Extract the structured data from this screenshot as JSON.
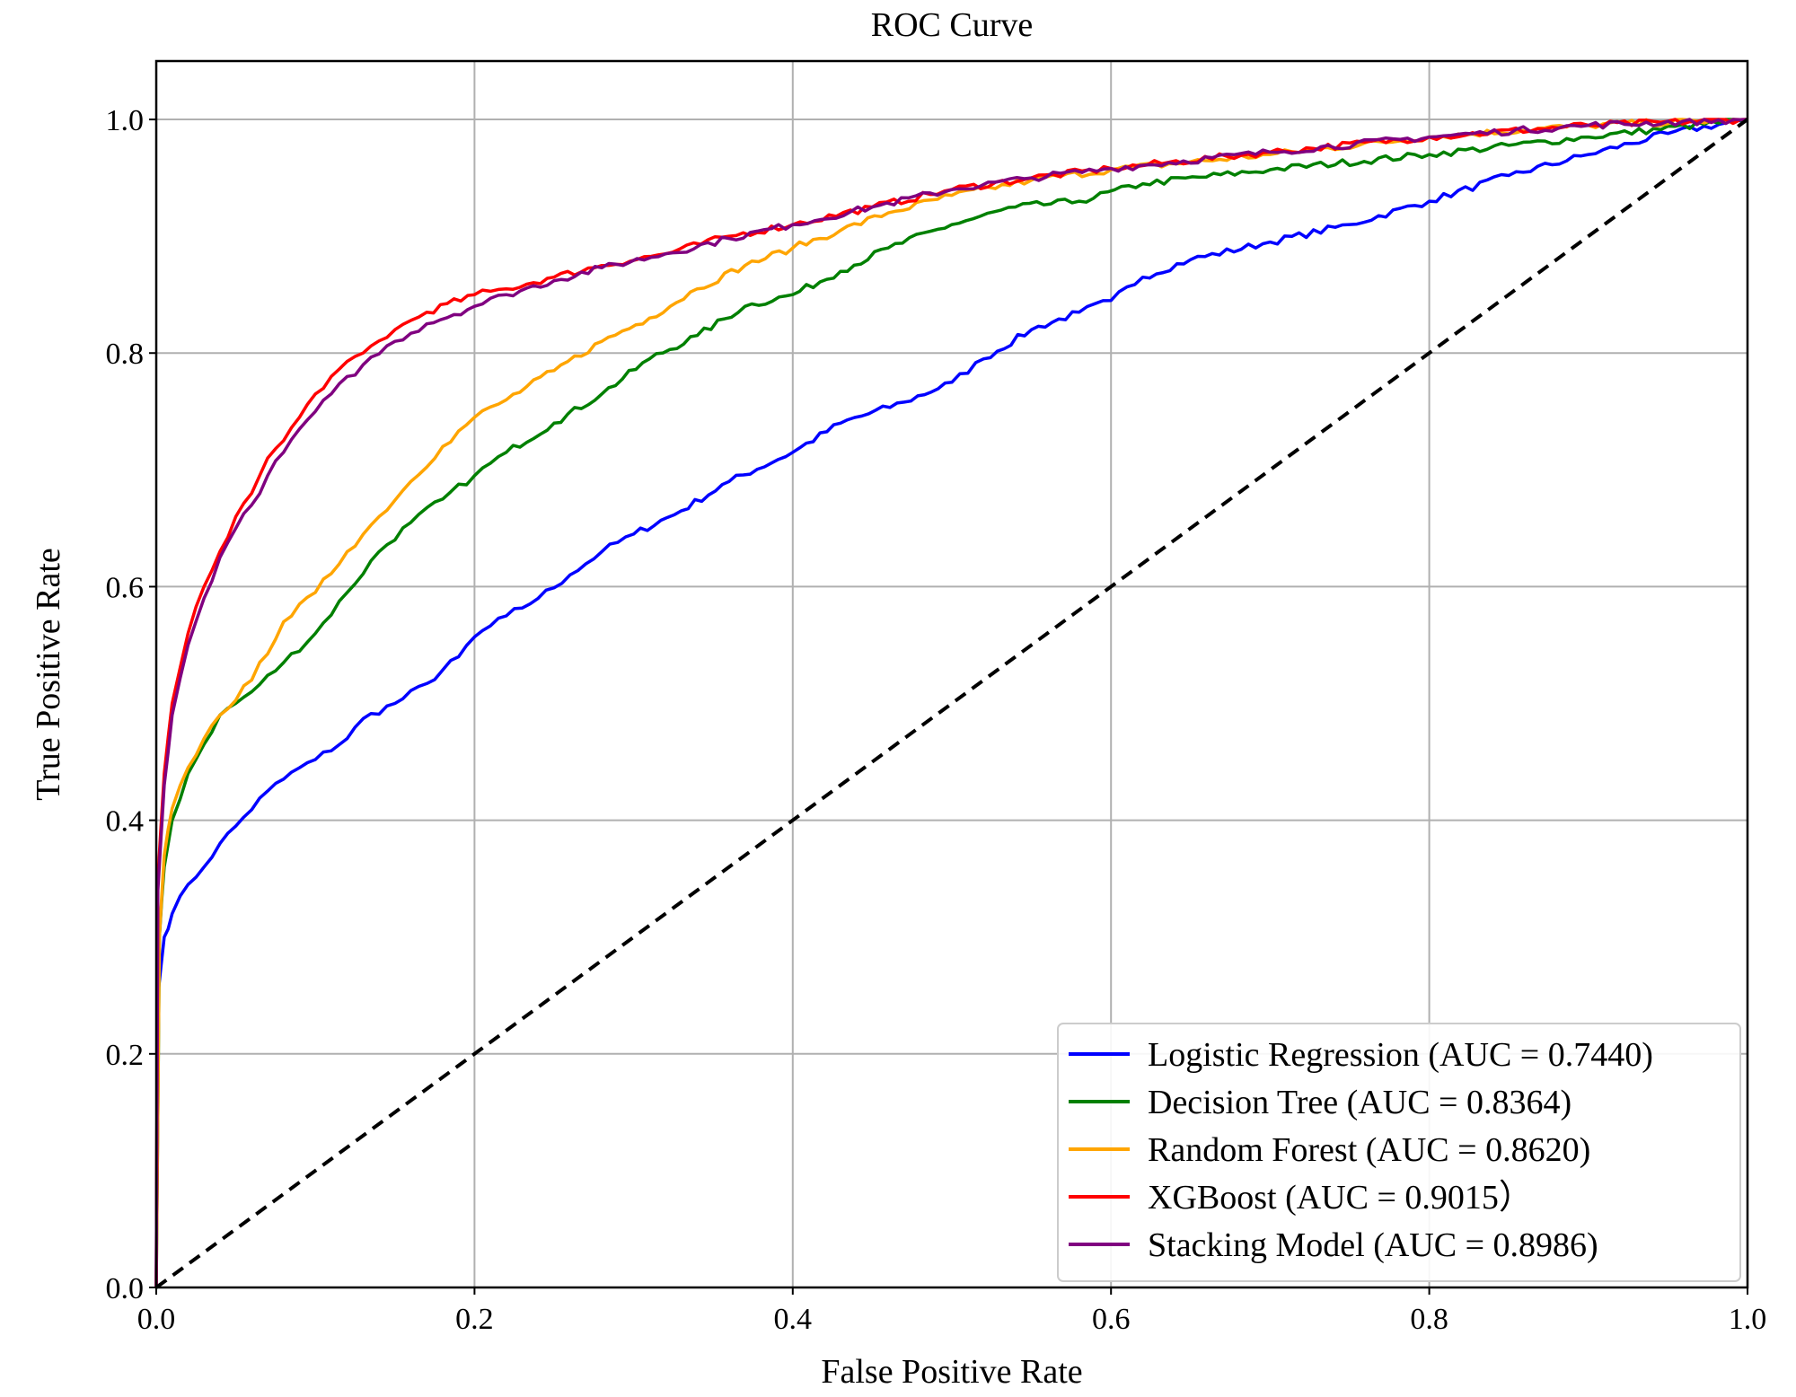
{
  "chart_data": {
    "type": "line",
    "title": "ROC Curve",
    "xlabel": "False Positive Rate",
    "ylabel": "True Positive Rate",
    "xlim": [
      0,
      1
    ],
    "ylim": [
      0,
      1.05
    ],
    "xticks": [
      "0.0",
      "0.2",
      "0.4",
      "0.6",
      "0.8",
      "1.0"
    ],
    "yticks": [
      "0.0",
      "0.2",
      "0.4",
      "0.6",
      "0.8",
      "1.0"
    ],
    "grid": true,
    "legend_position": "lower-right",
    "series": [
      {
        "name": "Logistic Regression (AUC = 0.7440)",
        "color": "#0000ff",
        "points": [
          [
            0,
            0
          ],
          [
            0.001,
            0.25
          ],
          [
            0.005,
            0.3
          ],
          [
            0.01,
            0.32
          ],
          [
            0.02,
            0.345
          ],
          [
            0.03,
            0.36
          ],
          [
            0.04,
            0.38
          ],
          [
            0.05,
            0.395
          ],
          [
            0.07,
            0.425
          ],
          [
            0.09,
            0.445
          ],
          [
            0.1,
            0.452
          ],
          [
            0.12,
            0.47
          ],
          [
            0.13,
            0.487
          ],
          [
            0.15,
            0.5
          ],
          [
            0.17,
            0.517
          ],
          [
            0.19,
            0.54
          ],
          [
            0.2,
            0.557
          ],
          [
            0.22,
            0.575
          ],
          [
            0.24,
            0.59
          ],
          [
            0.26,
            0.61
          ],
          [
            0.28,
            0.63
          ],
          [
            0.3,
            0.645
          ],
          [
            0.33,
            0.665
          ],
          [
            0.36,
            0.69
          ],
          [
            0.4,
            0.715
          ],
          [
            0.43,
            0.74
          ],
          [
            0.47,
            0.758
          ],
          [
            0.5,
            0.775
          ],
          [
            0.52,
            0.795
          ],
          [
            0.55,
            0.82
          ],
          [
            0.58,
            0.835
          ],
          [
            0.6,
            0.845
          ],
          [
            0.62,
            0.865
          ],
          [
            0.65,
            0.88
          ],
          [
            0.7,
            0.895
          ],
          [
            0.75,
            0.91
          ],
          [
            0.8,
            0.93
          ],
          [
            0.85,
            0.952
          ],
          [
            0.9,
            0.97
          ],
          [
            0.95,
            0.988
          ],
          [
            1,
            1
          ]
        ]
      },
      {
        "name": "Decision Tree (AUC = 0.8364)",
        "color": "#008000",
        "points": [
          [
            0,
            0
          ],
          [
            0.002,
            0.3
          ],
          [
            0.005,
            0.36
          ],
          [
            0.01,
            0.4
          ],
          [
            0.02,
            0.44
          ],
          [
            0.03,
            0.465
          ],
          [
            0.04,
            0.49
          ],
          [
            0.06,
            0.51
          ],
          [
            0.08,
            0.535
          ],
          [
            0.1,
            0.56
          ],
          [
            0.12,
            0.595
          ],
          [
            0.14,
            0.63
          ],
          [
            0.16,
            0.655
          ],
          [
            0.18,
            0.675
          ],
          [
            0.2,
            0.695
          ],
          [
            0.22,
            0.715
          ],
          [
            0.25,
            0.74
          ],
          [
            0.28,
            0.765
          ],
          [
            0.31,
            0.795
          ],
          [
            0.34,
            0.815
          ],
          [
            0.37,
            0.84
          ],
          [
            0.4,
            0.85
          ],
          [
            0.43,
            0.87
          ],
          [
            0.46,
            0.89
          ],
          [
            0.5,
            0.91
          ],
          [
            0.54,
            0.925
          ],
          [
            0.58,
            0.93
          ],
          [
            0.62,
            0.945
          ],
          [
            0.7,
            0.957
          ],
          [
            0.8,
            0.97
          ],
          [
            0.9,
            0.985
          ],
          [
            1,
            1
          ]
        ]
      },
      {
        "name": "Random Forest (AUC = 0.8620)",
        "color": "#ffa500",
        "points": [
          [
            0,
            0
          ],
          [
            0.002,
            0.3
          ],
          [
            0.005,
            0.37
          ],
          [
            0.01,
            0.41
          ],
          [
            0.02,
            0.445
          ],
          [
            0.03,
            0.47
          ],
          [
            0.04,
            0.49
          ],
          [
            0.06,
            0.52
          ],
          [
            0.08,
            0.57
          ],
          [
            0.1,
            0.595
          ],
          [
            0.12,
            0.63
          ],
          [
            0.14,
            0.66
          ],
          [
            0.16,
            0.69
          ],
          [
            0.18,
            0.72
          ],
          [
            0.2,
            0.745
          ],
          [
            0.22,
            0.76
          ],
          [
            0.25,
            0.785
          ],
          [
            0.28,
            0.81
          ],
          [
            0.31,
            0.83
          ],
          [
            0.34,
            0.855
          ],
          [
            0.37,
            0.875
          ],
          [
            0.4,
            0.89
          ],
          [
            0.43,
            0.905
          ],
          [
            0.46,
            0.92
          ],
          [
            0.5,
            0.935
          ],
          [
            0.55,
            0.948
          ],
          [
            0.6,
            0.957
          ],
          [
            0.7,
            0.97
          ],
          [
            0.8,
            0.985
          ],
          [
            0.9,
            0.995
          ],
          [
            1,
            1
          ]
        ]
      },
      {
        "name": "XGBoost (AUC = 0.9015）",
        "color": "#ff0000",
        "points": [
          [
            0,
            0
          ],
          [
            0.001,
            0.35
          ],
          [
            0.005,
            0.44
          ],
          [
            0.01,
            0.5
          ],
          [
            0.02,
            0.56
          ],
          [
            0.03,
            0.6
          ],
          [
            0.04,
            0.63
          ],
          [
            0.05,
            0.66
          ],
          [
            0.06,
            0.68
          ],
          [
            0.07,
            0.71
          ],
          [
            0.08,
            0.725
          ],
          [
            0.09,
            0.745
          ],
          [
            0.1,
            0.765
          ],
          [
            0.11,
            0.78
          ],
          [
            0.13,
            0.8
          ],
          [
            0.15,
            0.82
          ],
          [
            0.17,
            0.835
          ],
          [
            0.2,
            0.85
          ],
          [
            0.22,
            0.855
          ],
          [
            0.25,
            0.865
          ],
          [
            0.28,
            0.875
          ],
          [
            0.32,
            0.885
          ],
          [
            0.36,
            0.9
          ],
          [
            0.4,
            0.91
          ],
          [
            0.45,
            0.925
          ],
          [
            0.5,
            0.94
          ],
          [
            0.55,
            0.95
          ],
          [
            0.6,
            0.958
          ],
          [
            0.7,
            0.972
          ],
          [
            0.8,
            0.985
          ],
          [
            0.9,
            0.995
          ],
          [
            1,
            1
          ]
        ]
      },
      {
        "name": "Stacking Model (AUC = 0.8986)",
        "color": "#800080",
        "points": [
          [
            0,
            0
          ],
          [
            0.001,
            0.34
          ],
          [
            0.005,
            0.43
          ],
          [
            0.01,
            0.49
          ],
          [
            0.02,
            0.55
          ],
          [
            0.03,
            0.59
          ],
          [
            0.04,
            0.625
          ],
          [
            0.05,
            0.65
          ],
          [
            0.06,
            0.67
          ],
          [
            0.07,
            0.695
          ],
          [
            0.08,
            0.715
          ],
          [
            0.09,
            0.735
          ],
          [
            0.1,
            0.75
          ],
          [
            0.11,
            0.765
          ],
          [
            0.13,
            0.79
          ],
          [
            0.15,
            0.81
          ],
          [
            0.17,
            0.825
          ],
          [
            0.2,
            0.84
          ],
          [
            0.22,
            0.85
          ],
          [
            0.25,
            0.862
          ],
          [
            0.28,
            0.873
          ],
          [
            0.32,
            0.885
          ],
          [
            0.36,
            0.898
          ],
          [
            0.4,
            0.91
          ],
          [
            0.45,
            0.925
          ],
          [
            0.5,
            0.94
          ],
          [
            0.55,
            0.95
          ],
          [
            0.6,
            0.958
          ],
          [
            0.7,
            0.972
          ],
          [
            0.8,
            0.985
          ],
          [
            0.9,
            0.995
          ],
          [
            1,
            1
          ]
        ]
      },
      {
        "name": "",
        "color": "#000000",
        "style": "dashed",
        "points": [
          [
            0,
            0
          ],
          [
            1,
            1
          ]
        ]
      }
    ]
  }
}
